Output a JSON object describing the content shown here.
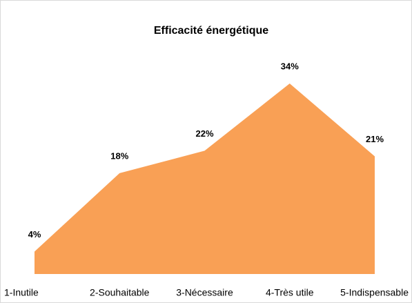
{
  "chart_data": {
    "type": "area",
    "title": "Efficacité énergétique",
    "categories": [
      "1-Inutile",
      "2-Souhaitable",
      "3-Nécessaire",
      "4-Très utile",
      "5-Indispensable"
    ],
    "values": [
      4,
      18,
      22,
      34,
      21
    ],
    "value_labels": [
      "4%",
      "18%",
      "22%",
      "34%",
      "21%"
    ],
    "color": "#f9a055"
  }
}
